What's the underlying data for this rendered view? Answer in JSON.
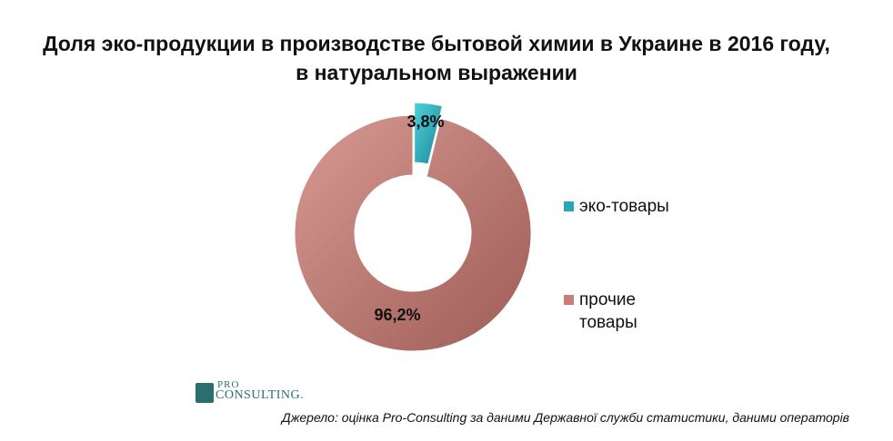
{
  "chart_data": {
    "type": "pie",
    "title": "Доля эко-продукции в производстве бытовой химии в Украине в 2016 году, в натуральном выражении",
    "categories": [
      "эко-товары",
      "прочие товары"
    ],
    "values": [
      3.8,
      96.2
    ],
    "data_labels": [
      "3,8%",
      "96,2%"
    ],
    "colors": [
      "#2aa7b5",
      "#c97d75"
    ],
    "legend_placement": "right"
  },
  "logo": {
    "line1": "PRO",
    "line2": "CONSULTING."
  },
  "source": "Джерело: оцінка Pro-Consulting за даними Державної служби статистики, даними операторів"
}
